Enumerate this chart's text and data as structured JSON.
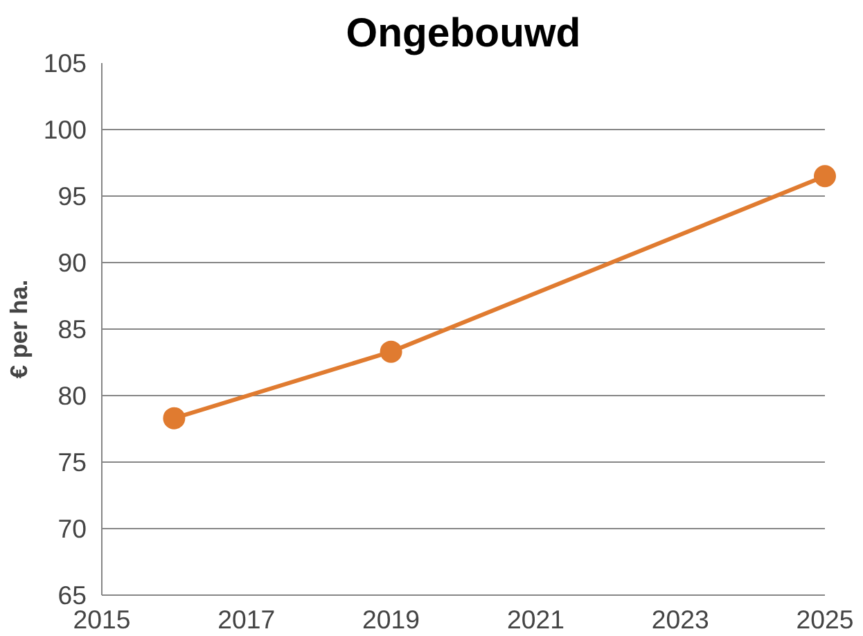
{
  "chart_data": {
    "type": "line",
    "title": "Ongebouwd",
    "ylabel": "€ per ha.",
    "x": [
      2016,
      2019,
      2025
    ],
    "series": [
      {
        "color": "#e07b30",
        "values": [
          78.3,
          83.3,
          96.5
        ]
      }
    ],
    "xlim": [
      2015,
      2025
    ],
    "xticks": [
      2015,
      2017,
      2019,
      2021,
      2023,
      2025
    ],
    "ylim": [
      65,
      105
    ],
    "yticks": [
      65,
      70,
      75,
      80,
      85,
      90,
      95,
      100,
      105
    ],
    "grid": "y",
    "marker": "circle",
    "line_style": "solid"
  }
}
